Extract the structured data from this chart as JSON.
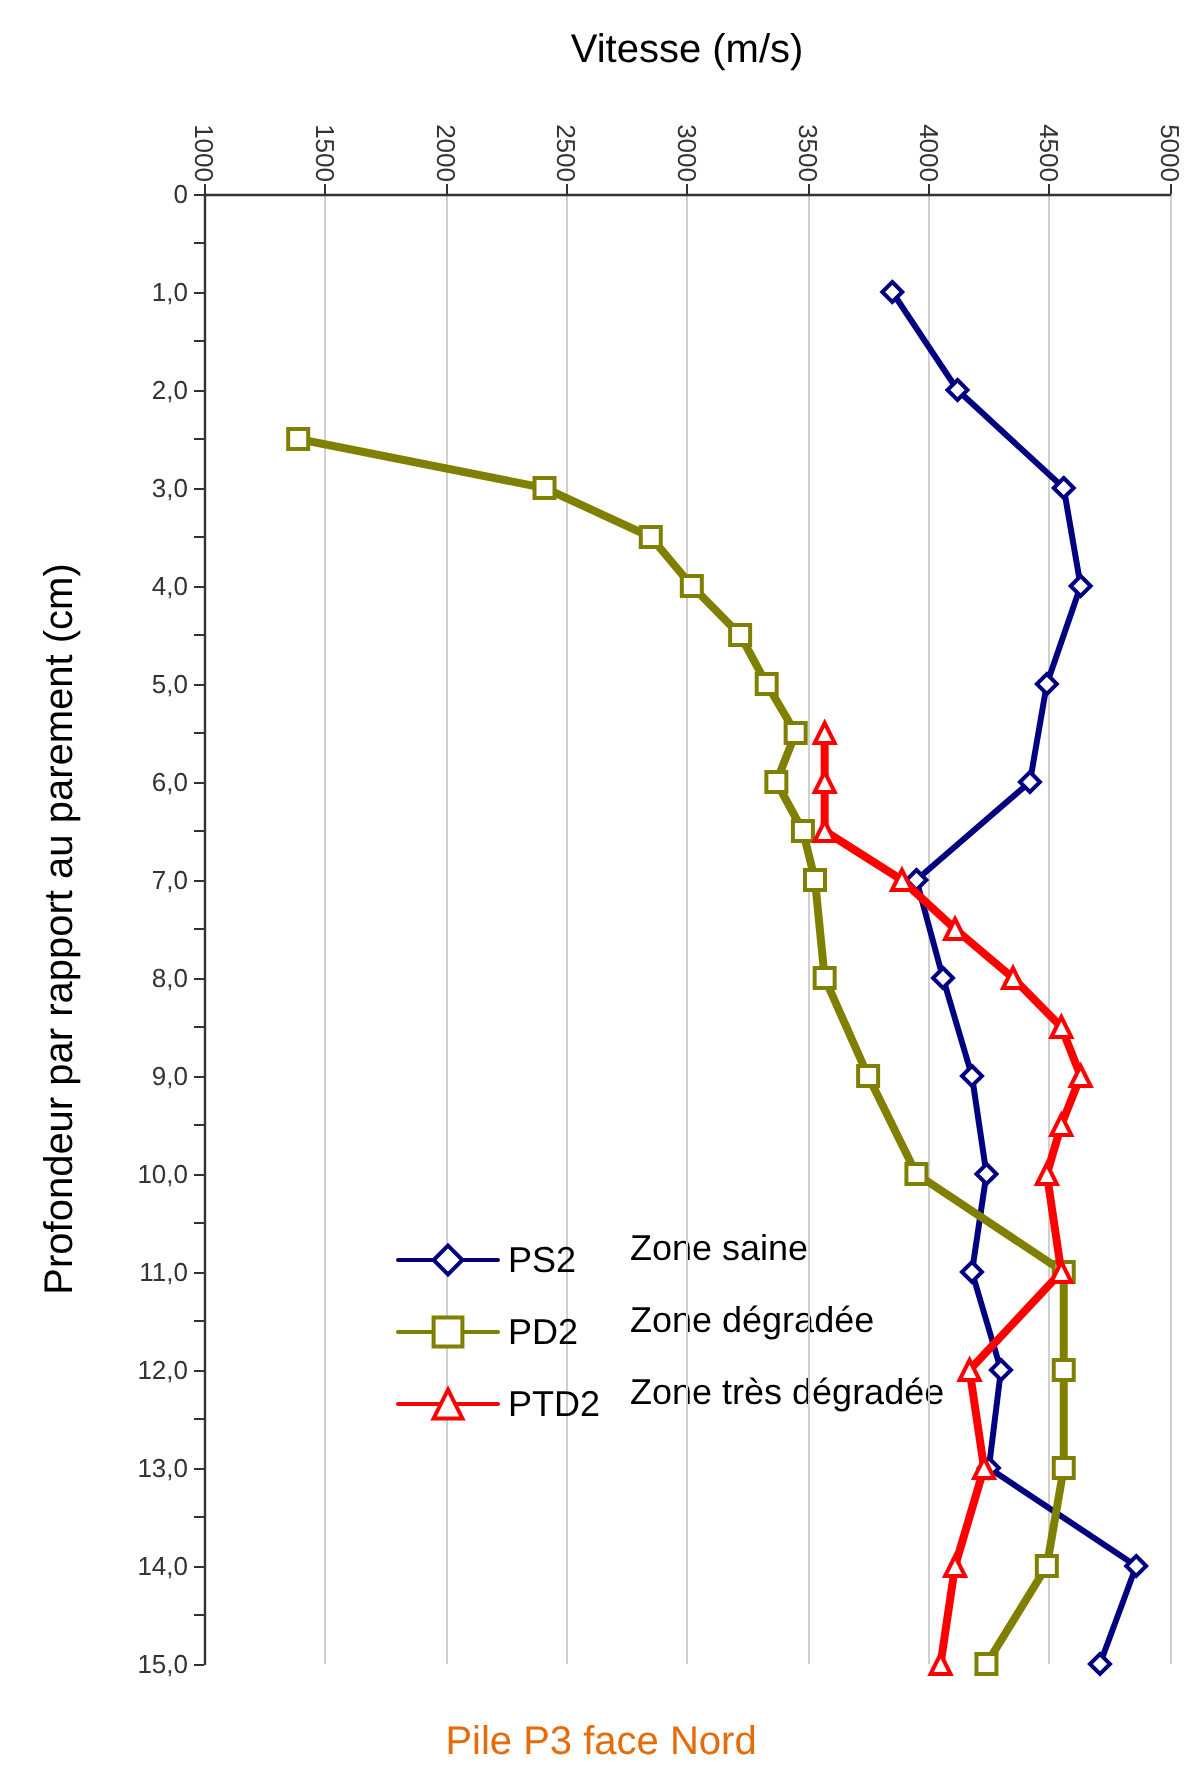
{
  "chart_data": {
    "type": "line",
    "title": "Pile P3 face Nord",
    "xlabel": "Vitesse (m/s)",
    "ylabel": "Profondeur par rapport au parement (cm)",
    "orientation": "horizontal",
    "xlim": [
      1000,
      5000
    ],
    "xticks": [
      1000,
      1500,
      2000,
      2500,
      3000,
      3500,
      4000,
      4500,
      5000
    ],
    "ylim": [
      15,
      0
    ],
    "yticks": [
      0,
      {
        "value": 0.5,
        "label": null
      },
      {
        "value": 1,
        "label": "1,0"
      },
      {
        "value": 1.5,
        "label": null
      },
      {
        "value": 2,
        "label": "2,0"
      },
      {
        "value": 2.5,
        "label": null
      },
      {
        "value": 3,
        "label": "3,0"
      },
      {
        "value": 3.5,
        "label": null
      },
      {
        "value": 4,
        "label": "4,0"
      },
      {
        "value": 4.5,
        "label": null
      },
      {
        "value": 5,
        "label": "5,0"
      },
      {
        "value": 5.5,
        "label": null
      },
      {
        "value": 6,
        "label": "6,0"
      },
      {
        "value": 6.5,
        "label": null
      },
      {
        "value": 7,
        "label": "7,0"
      },
      {
        "value": 7.5,
        "label": null
      },
      {
        "value": 8,
        "label": "8,0"
      },
      {
        "value": 8.5,
        "label": null
      },
      {
        "value": 9,
        "label": "9,0"
      },
      {
        "value": 9.5,
        "label": null
      },
      {
        "value": 10,
        "label": "10,0"
      },
      {
        "value": 10.5,
        "label": null
      },
      {
        "value": 11,
        "label": "11,0"
      },
      {
        "value": 11.5,
        "label": null
      },
      {
        "value": 12,
        "label": "12,0"
      },
      {
        "value": 12.5,
        "label": null
      },
      {
        "value": 13,
        "label": "13,0"
      },
      {
        "value": 13.5,
        "label": null
      },
      {
        "value": 14,
        "label": "14,0"
      },
      {
        "value": 14.5,
        "label": null
      },
      {
        "value": 15,
        "label": "15,0"
      }
    ],
    "grid": "x",
    "legend": "bottom left",
    "line_style": "solid",
    "annotations": [
      "Zone saine",
      "Zone dégradée",
      "Zone très dégradée"
    ],
    "series": [
      {
        "name": "PS2",
        "color": "#000080",
        "marker": "diamond",
        "x": [
          1,
          2,
          3,
          4,
          5,
          6,
          7,
          8,
          9,
          10,
          11,
          12,
          13,
          14,
          15
        ],
        "values": [
          3850,
          4120,
          4560,
          4630,
          4490,
          4420,
          3950,
          4060,
          4180,
          4240,
          4180,
          4300,
          4250,
          4860,
          4710
        ]
      },
      {
        "name": "PD2",
        "color": "#808000",
        "marker": "square",
        "x": [
          2.5,
          3,
          3.5,
          4,
          4.5,
          5,
          5.5,
          6,
          6.5,
          7,
          8,
          9,
          10,
          11,
          12,
          13,
          14,
          15
        ],
        "values": [
          1390,
          2410,
          2850,
          3020,
          3220,
          3330,
          3450,
          3370,
          3480,
          3530,
          3570,
          3750,
          3950,
          4560,
          4560,
          4560,
          4490,
          4240
        ]
      },
      {
        "name": "PTD2",
        "color": "#ff0000",
        "marker": "triangle",
        "x": [
          5.5,
          6,
          6.5,
          7,
          7.5,
          8,
          8.5,
          9,
          9.5,
          10,
          11,
          12,
          13,
          14,
          15
        ],
        "values": [
          3570,
          3570,
          3570,
          3890,
          4110,
          4350,
          4550,
          4630,
          4550,
          4490,
          4550,
          4170,
          4230,
          4110,
          4050
        ]
      }
    ]
  }
}
